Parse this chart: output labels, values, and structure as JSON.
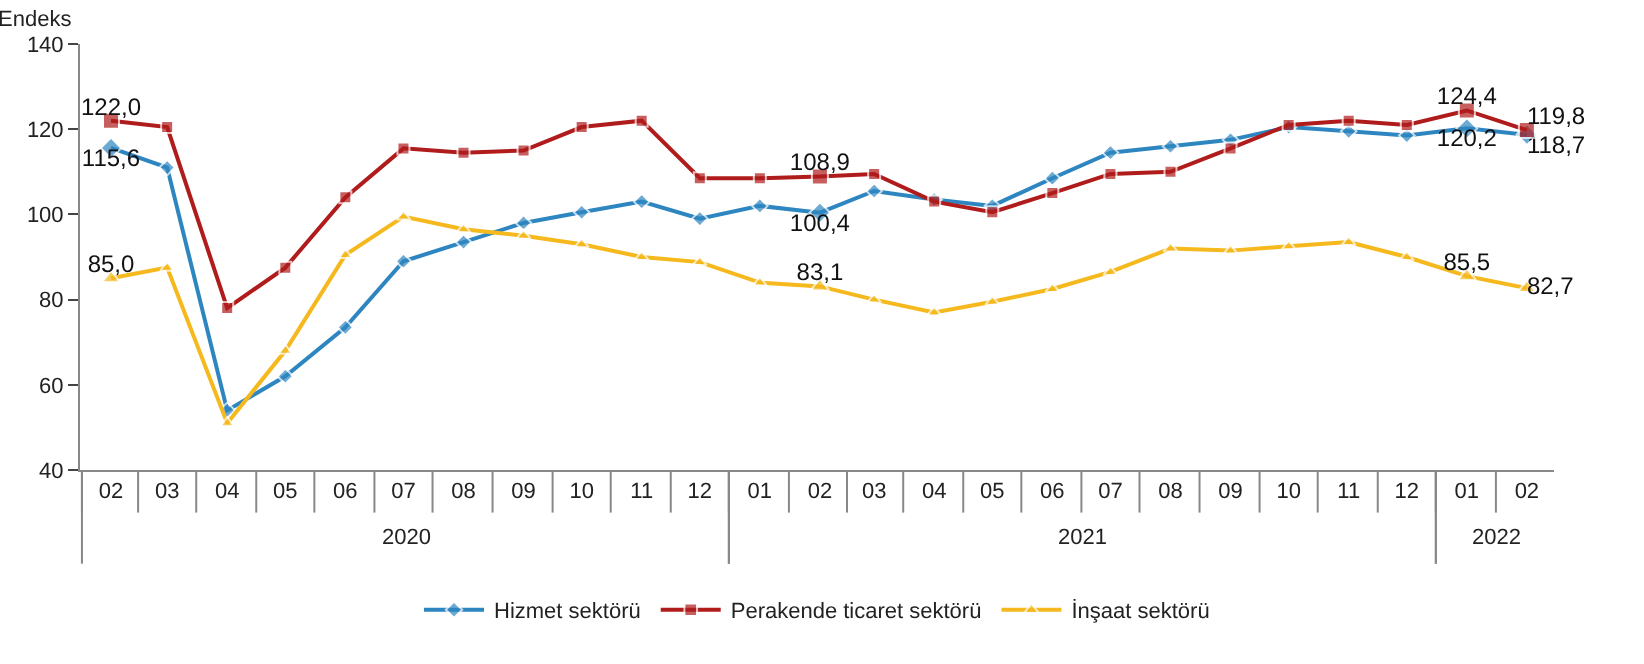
{
  "chart_data": {
    "type": "line",
    "ylabel": "Endeks",
    "x": [
      "2020-02",
      "2020-03",
      "2020-04",
      "2020-05",
      "2020-06",
      "2020-07",
      "2020-08",
      "2020-09",
      "2020-10",
      "2020-11",
      "2020-12",
      "2021-01",
      "2021-02",
      "2021-03",
      "2021-04",
      "2021-05",
      "2021-06",
      "2021-07",
      "2021-08",
      "2021-09",
      "2021-10",
      "2021-11",
      "2021-12",
      "2022-01",
      "2022-02"
    ],
    "xticks": [
      {
        "value": "2020-02",
        "label": "02"
      },
      {
        "value": "2020-03",
        "label": "03"
      },
      {
        "value": "2020-04",
        "label": "04"
      },
      {
        "value": "2020-05",
        "label": "05"
      },
      {
        "value": "2020-06",
        "label": "06"
      },
      {
        "value": "2020-07",
        "label": "07"
      },
      {
        "value": "2020-08",
        "label": "08"
      },
      {
        "value": "2020-09",
        "label": "09"
      },
      {
        "value": "2020-10",
        "label": "10"
      },
      {
        "value": "2020-11",
        "label": "11"
      },
      {
        "value": "2020-12",
        "label": "12"
      },
      {
        "value": "2021-01",
        "label": "01"
      },
      {
        "value": "2021-02",
        "label": "02"
      },
      {
        "value": "2021-03",
        "label": "03"
      },
      {
        "value": "2021-04",
        "label": "04"
      },
      {
        "value": "2021-05",
        "label": "05"
      },
      {
        "value": "2021-06",
        "label": "06"
      },
      {
        "value": "2021-07",
        "label": "07"
      },
      {
        "value": "2021-08",
        "label": "08"
      },
      {
        "value": "2021-09",
        "label": "09"
      },
      {
        "value": "2021-10",
        "label": "10"
      },
      {
        "value": "2021-11",
        "label": "11"
      },
      {
        "value": "2021-12",
        "label": "12"
      },
      {
        "value": "2022-01",
        "label": "01"
      },
      {
        "value": "2022-02",
        "label": "02"
      }
    ],
    "annotations": [
      "2020",
      "2021",
      "2022"
    ],
    "xlim": [
      "2020-01-16",
      "2022-02-15"
    ],
    "ylim": [
      40,
      140
    ],
    "yticks": [
      40,
      60,
      80,
      100,
      120,
      140
    ],
    "legend": "bottom",
    "series": [
      {
        "name": "Hizmet sektörü",
        "color": "#2e86c1",
        "marker": "diamond",
        "values": [
          115.6,
          111,
          54,
          62,
          73.5,
          89,
          93.5,
          98,
          100.5,
          103,
          99,
          102,
          100.4,
          105.5,
          103.5,
          102,
          108.5,
          114.5,
          116,
          117.5,
          120.5,
          119.5,
          118.5,
          120.2,
          118.7
        ],
        "value_labels": [
          "115,6",
          null,
          null,
          null,
          null,
          null,
          null,
          null,
          null,
          null,
          null,
          null,
          "100,4",
          null,
          null,
          null,
          null,
          null,
          null,
          null,
          null,
          null,
          null,
          "120,2",
          "118,7"
        ]
      },
      {
        "name": "Perakende ticaret sektörü",
        "color": "#b01c1c",
        "marker": "square",
        "values": [
          122.0,
          120.5,
          78,
          87.5,
          104,
          115.5,
          114.5,
          115,
          120.5,
          122,
          108.5,
          108.5,
          108.9,
          109.5,
          103,
          100.5,
          105,
          109.5,
          110,
          115.5,
          121,
          122,
          121,
          124.4,
          119.8
        ],
        "value_labels": [
          "122,0",
          null,
          null,
          null,
          null,
          null,
          null,
          null,
          null,
          null,
          null,
          null,
          "108,9",
          null,
          null,
          null,
          null,
          null,
          null,
          null,
          null,
          null,
          null,
          "124,4",
          "119,8"
        ]
      },
      {
        "name": "İnşaat sektörü",
        "color": "#f5b91e",
        "marker": "triangle",
        "values": [
          85.0,
          87.5,
          51,
          68,
          90.5,
          99.5,
          96.5,
          95,
          93,
          90,
          88.8,
          84,
          83.1,
          80,
          77,
          79.5,
          82.5,
          86.5,
          92,
          91.5,
          92.5,
          93.5,
          90,
          85.5,
          82.7
        ],
        "value_labels": [
          "85,0",
          null,
          null,
          null,
          null,
          null,
          null,
          null,
          null,
          null,
          null,
          null,
          "83,1",
          null,
          null,
          null,
          null,
          null,
          null,
          null,
          null,
          null,
          null,
          "85,5",
          "82,7"
        ]
      }
    ]
  }
}
